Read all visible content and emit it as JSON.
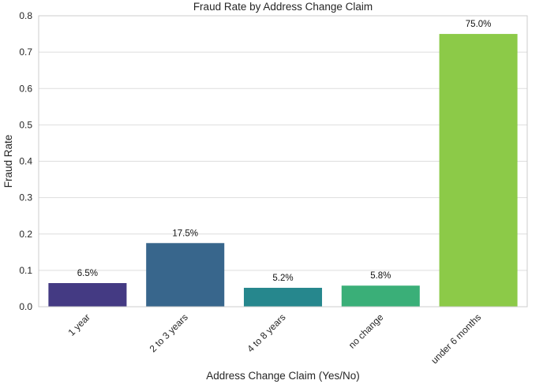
{
  "chart_data": {
    "type": "bar",
    "title": "Fraud Rate by Address Change Claim",
    "xlabel": "Address Change Claim (Yes/No)",
    "ylabel": "Fraud Rate",
    "categories": [
      "1 year",
      "2 to 3 years",
      "4 to 8 years",
      "no change",
      "under 6 months"
    ],
    "values": [
      0.065,
      0.175,
      0.052,
      0.058,
      0.75
    ],
    "data_labels": [
      "6.5%",
      "17.5%",
      "5.2%",
      "5.8%",
      "75.0%"
    ],
    "colors": [
      "#443a83",
      "#38668c",
      "#26878d",
      "#3aaf78",
      "#8cca48"
    ],
    "ylim": [
      0,
      0.8
    ],
    "yticks": [
      0.0,
      0.1,
      0.2,
      0.3,
      0.4,
      0.5,
      0.6,
      0.7,
      0.8
    ],
    "ytick_labels": [
      "0.0",
      "0.1",
      "0.2",
      "0.3",
      "0.4",
      "0.5",
      "0.6",
      "0.7",
      "0.8"
    ],
    "grid": true,
    "grid_color": "#dddddd",
    "frame_color": "#cccccc",
    "xtick_rotation": "45 degrees"
  }
}
